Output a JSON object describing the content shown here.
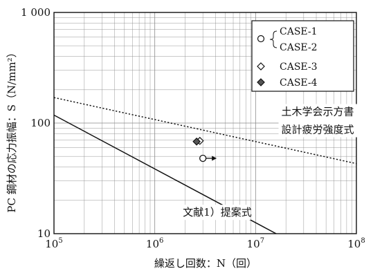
{
  "chart_data": {
    "type": "scatter",
    "title": "",
    "xlabel": "繰返し回数：N（回）",
    "ylabel": "PC 鋼材の応力振幅：S（N/mm²）",
    "x_scale": "log",
    "y_scale": "log",
    "xlim": [
      100000,
      100000000
    ],
    "ylim": [
      10,
      1000
    ],
    "grid": true,
    "x_ticks": [
      {
        "base": "10",
        "exp": "5"
      },
      {
        "base": "10",
        "exp": "6"
      },
      {
        "base": "10",
        "exp": "7"
      },
      {
        "base": "10",
        "exp": "8"
      }
    ],
    "y_ticks": [
      "10",
      "100",
      "1 000"
    ],
    "y_tick_values": [
      10,
      100,
      1000
    ],
    "legend": {
      "position": "top-right",
      "entries": [
        {
          "label": "CASE-1",
          "marker": "circle-open"
        },
        {
          "label": "CASE-2",
          "marker": "circle-open"
        },
        {
          "label": "CASE-3",
          "marker": "diamond-open"
        },
        {
          "label": "CASE-4",
          "marker": "diamond-filled"
        }
      ]
    },
    "series": [
      {
        "label": "文献1）提案式",
        "style": "solid",
        "x": [
          100000,
          16000000
        ],
        "y": [
          118,
          10
        ]
      },
      {
        "label": "土木学会示方書\n設計疲労強度式",
        "style": "dotted",
        "x": [
          100000,
          100000000
        ],
        "y": [
          170,
          43
        ]
      },
      {
        "marker": "circle-open",
        "x": [
          3000000
        ],
        "y": [
          48
        ],
        "runout_arrow": true
      },
      {
        "marker": "diamond-open",
        "x": [
          2800000
        ],
        "y": [
          69
        ]
      },
      {
        "marker": "diamond-filled",
        "x": [
          2600000
        ],
        "y": [
          68
        ]
      }
    ],
    "annotations": [
      {
        "text": "文献1）提案式",
        "x": 1900000,
        "y": 14.5
      },
      {
        "text": "土木学会示方書",
        "x": 18000000,
        "y": 118
      },
      {
        "text": "設計疲労強度式",
        "x": 18000000,
        "y": 81
      }
    ],
    "colors": {
      "line": "#111111",
      "grid": "#8a8a8a",
      "case4_fill": "#555555"
    }
  }
}
